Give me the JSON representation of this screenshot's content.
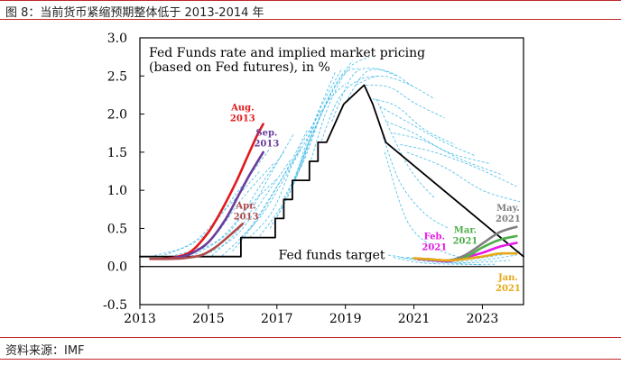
{
  "header": {
    "caption": "图 8：当前货币紧缩预期整体低于 2013-2014 年"
  },
  "footer": {
    "source": "资料来源：IMF"
  },
  "chart_data": {
    "type": "line",
    "title": "Fed Funds rate and implied market pricing",
    "subtitle": "(based on Fed futures), in %",
    "xlabel": "",
    "ylabel": "",
    "xlim": [
      2013,
      2024.2
    ],
    "ylim": [
      -0.5,
      3.0
    ],
    "x_ticks": [
      2013,
      2015,
      2017,
      2019,
      2021,
      2023
    ],
    "y_ticks": [
      -0.5,
      0.0,
      0.5,
      1.0,
      1.5,
      2.0,
      2.5,
      3.0
    ],
    "y_tick_labels": [
      "-0.5",
      "0.0",
      "0.5",
      "1.0",
      "1.5",
      "2.0",
      "2.5",
      "3.0"
    ],
    "annotations": [
      {
        "text": "Fed funds target",
        "x": 2018.6,
        "y": 0.1
      }
    ],
    "series": [
      {
        "name": "Fed funds target",
        "style": "step",
        "color": "#000000",
        "x": [
          2013,
          2015.95,
          2015.95,
          2016.95,
          2016.95,
          2017.2,
          2017.2,
          2017.45,
          2017.45,
          2017.95,
          2017.95,
          2018.2,
          2018.2,
          2018.45,
          2018.7,
          2018.7,
          2018.95,
          2018.95,
          2019.55,
          2019.55,
          2019.8,
          2019.8,
          2020.18,
          2020.18,
          2024.2
        ],
        "y": [
          0.13,
          0.13,
          0.38,
          0.38,
          0.63,
          0.63,
          0.88,
          0.88,
          1.13,
          1.13,
          1.38,
          1.38,
          1.63,
          1.63,
          1.88,
          1.88,
          2.13,
          2.13,
          2.38,
          2.38,
          2.13,
          2.13,
          1.63,
          1.63,
          0.13
        ]
      },
      {
        "name": "Aug. 2013",
        "color": "#e31a1c",
        "x": [
          2013.6,
          2014.0,
          2014.5,
          2015.0,
          2015.4,
          2015.8,
          2016.1,
          2016.4,
          2016.6
        ],
        "y": [
          0.1,
          0.12,
          0.2,
          0.45,
          0.75,
          1.1,
          1.4,
          1.7,
          1.87
        ]
      },
      {
        "name": "Sep. 2013",
        "color": "#6a3d9a",
        "x": [
          2013.7,
          2014.0,
          2014.5,
          2015.0,
          2015.5,
          2015.9,
          2016.2,
          2016.6
        ],
        "y": [
          0.1,
          0.11,
          0.17,
          0.32,
          0.62,
          0.95,
          1.2,
          1.5
        ]
      },
      {
        "name": "Apr. 2013",
        "color": "#b04a4a",
        "x": [
          2013.3,
          2013.8,
          2014.3,
          2014.8,
          2015.2,
          2015.6,
          2016.0
        ],
        "y": [
          0.1,
          0.1,
          0.11,
          0.15,
          0.25,
          0.4,
          0.56
        ]
      },
      {
        "name": "Feb. 2021",
        "color": "#e619e6",
        "x": [
          2021.1,
          2022.0,
          2022.5,
          2023.0,
          2023.5,
          2024.0
        ],
        "y": [
          0.1,
          0.07,
          0.12,
          0.18,
          0.26,
          0.31
        ]
      },
      {
        "name": "Mar. 2021",
        "color": "#4daf4a",
        "x": [
          2021.2,
          2022.0,
          2022.5,
          2023.0,
          2023.5,
          2024.0
        ],
        "y": [
          0.1,
          0.08,
          0.12,
          0.25,
          0.35,
          0.4
        ]
      },
      {
        "name": "May. 2021",
        "color": "#7f7f7f",
        "x": [
          2021.4,
          2022.0,
          2022.5,
          2023.0,
          2023.5,
          2024.0
        ],
        "y": [
          0.1,
          0.08,
          0.15,
          0.3,
          0.45,
          0.52
        ]
      },
      {
        "name": "Jan. 2021",
        "color": "#e6a817",
        "x": [
          2021.0,
          2022.0,
          2022.5,
          2023.0,
          2023.5,
          2024.0
        ],
        "y": [
          0.11,
          0.08,
          0.1,
          0.13,
          0.17,
          0.17
        ]
      }
    ],
    "label_positions": {
      "Aug. 2013": {
        "x": 2016.0,
        "y": 2.05,
        "lines": [
          "Aug.",
          "2013"
        ]
      },
      "Sep. 2013": {
        "x": 2016.7,
        "y": 1.72,
        "lines": [
          "Sep.",
          "2013"
        ]
      },
      "Apr. 2013": {
        "x": 2016.1,
        "y": 0.76,
        "lines": [
          "Apr.",
          "2013"
        ]
      },
      "Feb. 2021": {
        "x": 2021.6,
        "y": 0.36,
        "lines": [
          "Feb.",
          "2021"
        ]
      },
      "Mar. 2021": {
        "x": 2022.5,
        "y": 0.44,
        "lines": [
          "Mar.",
          "2021"
        ]
      },
      "May. 2021": {
        "x": 2023.75,
        "y": 0.73,
        "lines": [
          "May.",
          "2021"
        ]
      },
      "Jan. 2021": {
        "x": 2023.75,
        "y": -0.18,
        "lines": [
          "Jan.",
          "2021"
        ]
      }
    },
    "dashed_curves": [
      {
        "x": [
          2013.3,
          2014.5,
          2015.5,
          2016.5
        ],
        "y": [
          0.13,
          0.3,
          0.75,
          1.25
        ]
      },
      {
        "x": [
          2013.6,
          2014.8,
          2015.8,
          2016.8
        ],
        "y": [
          0.13,
          0.38,
          0.95,
          1.55
        ]
      },
      {
        "x": [
          2013.9,
          2015.0,
          2016.0,
          2016.9
        ],
        "y": [
          0.13,
          0.32,
          0.9,
          1.35
        ]
      },
      {
        "x": [
          2014.2,
          2015.3,
          2016.2,
          2017.0
        ],
        "y": [
          0.13,
          0.35,
          0.8,
          1.15
        ]
      },
      {
        "x": [
          2014.5,
          2015.6,
          2016.5,
          2017.2
        ],
        "y": [
          0.13,
          0.45,
          1.05,
          1.5
        ]
      },
      {
        "x": [
          2014.8,
          2015.8,
          2016.7,
          2017.4
        ],
        "y": [
          0.13,
          0.4,
          0.95,
          1.4
        ]
      },
      {
        "x": [
          2015.1,
          2016.0,
          2016.8,
          2017.5
        ],
        "y": [
          0.14,
          0.55,
          1.2,
          1.75
        ]
      },
      {
        "x": [
          2015.4,
          2016.2,
          2017.0,
          2017.7
        ],
        "y": [
          0.14,
          0.5,
          1.05,
          1.55
        ]
      },
      {
        "x": [
          2015.7,
          2016.4,
          2017.2,
          2017.9
        ],
        "y": [
          0.2,
          0.6,
          1.2,
          1.8
        ]
      },
      {
        "x": [
          2015.95,
          2016.6,
          2017.4,
          2018.1
        ],
        "y": [
          0.38,
          0.7,
          1.3,
          1.85
        ]
      },
      {
        "x": [
          2016.2,
          2016.9,
          2017.6,
          2018.3
        ],
        "y": [
          0.38,
          0.75,
          1.5,
          2.05
        ]
      },
      {
        "x": [
          2016.5,
          2017.2,
          2017.9,
          2018.6
        ],
        "y": [
          0.4,
          0.85,
          1.6,
          2.3
        ]
      },
      {
        "x": [
          2016.8,
          2017.4,
          2018.0,
          2018.7
        ],
        "y": [
          0.5,
          1.0,
          1.8,
          2.55
        ]
      },
      {
        "x": [
          2017.0,
          2017.6,
          2018.2,
          2018.9
        ],
        "y": [
          0.65,
          1.2,
          2.0,
          2.6
        ]
      },
      {
        "x": [
          2017.2,
          2017.8,
          2018.4,
          2019.0
        ],
        "y": [
          0.9,
          1.4,
          2.1,
          2.4
        ]
      },
      {
        "x": [
          2017.5,
          2018.0,
          2018.6,
          2019.2
        ],
        "y": [
          1.1,
          1.7,
          2.3,
          2.7
        ]
      },
      {
        "x": [
          2017.7,
          2018.2,
          2018.9,
          2019.4
        ],
        "y": [
          1.3,
          1.9,
          2.5,
          2.6
        ]
      },
      {
        "x": [
          2018.0,
          2018.5,
          2019.1,
          2019.7
        ],
        "y": [
          1.4,
          2.1,
          2.6,
          2.75
        ]
      },
      {
        "x": [
          2018.3,
          2018.8,
          2019.4,
          2020.0
        ],
        "y": [
          1.65,
          2.2,
          2.45,
          2.5
        ]
      },
      {
        "x": [
          2018.6,
          2019.2,
          2019.8,
          2020.5
        ],
        "y": [
          1.9,
          2.5,
          2.6,
          2.5
        ]
      },
      {
        "x": [
          2019.0,
          2019.6,
          2020.3,
          2021.0
        ],
        "y": [
          2.15,
          2.55,
          2.55,
          2.35
        ]
      },
      {
        "x": [
          2019.3,
          2020.0,
          2020.8,
          2021.6
        ],
        "y": [
          2.38,
          2.5,
          2.4,
          2.2
        ]
      },
      {
        "x": [
          2019.6,
          2020.3,
          2021.0,
          2021.9
        ],
        "y": [
          2.38,
          2.35,
          2.15,
          1.95
        ]
      },
      {
        "x": [
          2019.8,
          2020.5,
          2021.3,
          2022.2
        ],
        "y": [
          2.2,
          2.1,
          1.8,
          1.6
        ]
      },
      {
        "x": [
          2020.0,
          2020.8,
          2021.8,
          2022.8
        ],
        "y": [
          2.1,
          1.9,
          1.65,
          1.45
        ]
      },
      {
        "x": [
          2020.2,
          2021.0,
          2022.0,
          2023.2
        ],
        "y": [
          1.9,
          1.75,
          1.5,
          1.35
        ]
      },
      {
        "x": [
          2020.4,
          2021.3,
          2022.4,
          2023.6
        ],
        "y": [
          1.75,
          1.65,
          1.4,
          1.2
        ]
      },
      {
        "x": [
          2020.6,
          2021.6,
          2022.8,
          2024.0
        ],
        "y": [
          1.6,
          1.5,
          1.3,
          1.05
        ]
      },
      {
        "x": [
          2020.8,
          2021.9,
          2023.0,
          2024.1
        ],
        "y": [
          1.5,
          1.3,
          1.0,
          0.85
        ]
      },
      {
        "x": [
          2019.9,
          2020.5,
          2021.0,
          2021.6
        ],
        "y": [
          2.2,
          1.6,
          1.2,
          0.9
        ]
      },
      {
        "x": [
          2020.1,
          2020.6,
          2021.3,
          2022.0
        ],
        "y": [
          1.7,
          1.1,
          0.7,
          0.5
        ]
      },
      {
        "x": [
          2020.15,
          2020.8,
          2021.6,
          2022.5
        ],
        "y": [
          1.5,
          0.6,
          0.25,
          0.1
        ]
      },
      {
        "x": [
          2020.25,
          2021.0,
          2022.0,
          2023.0
        ],
        "y": [
          0.15,
          0.1,
          0.05,
          0.02
        ]
      },
      {
        "x": [
          2020.4,
          2021.2,
          2022.3,
          2023.4
        ],
        "y": [
          0.12,
          0.05,
          0.03,
          0.03
        ]
      },
      {
        "x": [
          2020.6,
          2021.5,
          2022.6,
          2023.8
        ],
        "y": [
          0.12,
          0.06,
          0.05,
          0.08
        ]
      },
      {
        "x": [
          2020.8,
          2021.8,
          2022.9,
          2024.0
        ],
        "y": [
          0.12,
          0.07,
          0.08,
          0.15
        ]
      },
      {
        "x": [
          2021.0,
          2022.0,
          2023.1,
          2024.1
        ],
        "y": [
          0.11,
          0.08,
          0.12,
          0.2
        ]
      }
    ]
  }
}
